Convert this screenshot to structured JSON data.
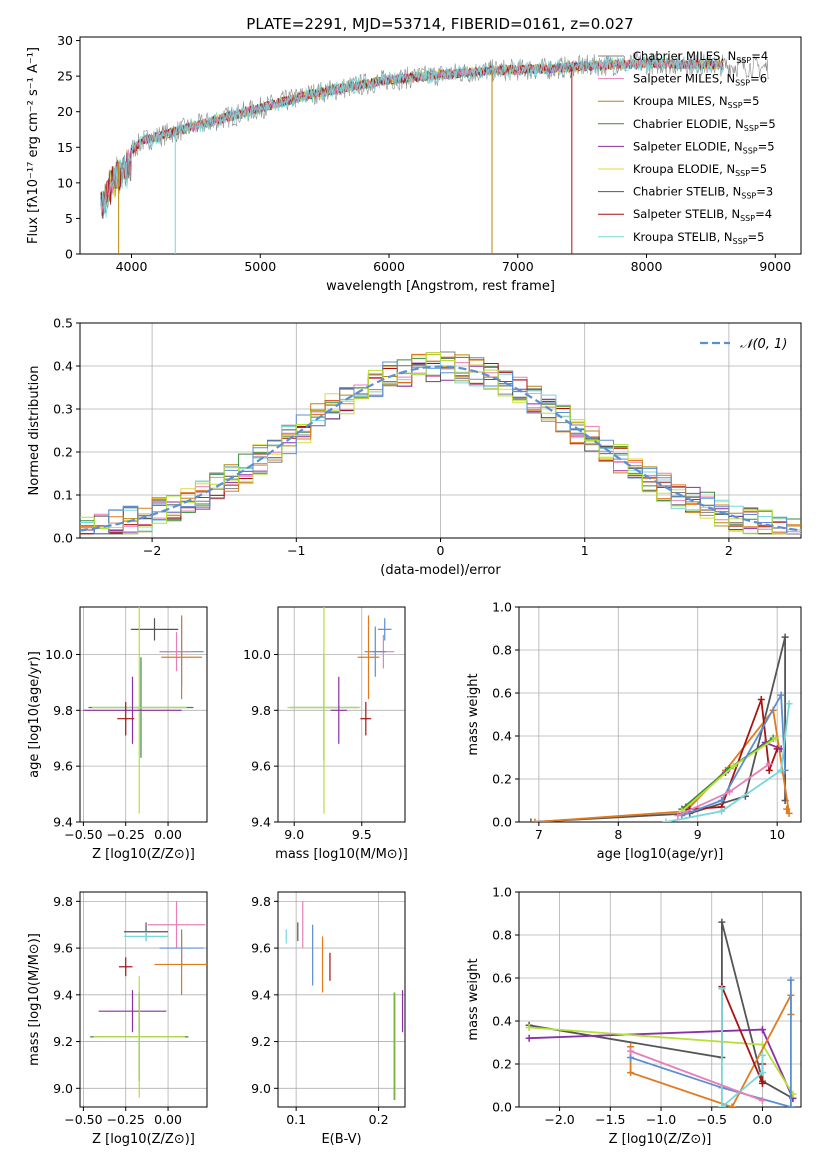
{
  "title": "PLATE=2291, MJD=53714, FIBERID=0161, z=0.027",
  "colors": {
    "axis": "#000000",
    "grid": "#b0b0b0",
    "chabrier_miles": "#808080",
    "salpeter_miles": "#e87fb6",
    "kroupa_miles": "#b8860b",
    "chabrier_elodie": "#3a8a3a",
    "salpeter_elodie": "#8b2fa6",
    "kroupa_elodie": "#d9dd3e",
    "chabrier_stelib": "#555555",
    "salpeter_stelib": "#aa1111",
    "kroupa_stelib": "#77d7db",
    "normal_curve": "#5b8fd4",
    "orange": "#e07a1f",
    "blue": "#5b8fd4",
    "lime": "#b5e03a"
  },
  "chart_data": [
    {
      "type": "line",
      "id": "spectrum",
      "xlabel": "wavelength [Angstrom, rest frame]",
      "ylabel": "Flux [fλ10⁻¹⁷ erg cm⁻² s⁻¹ A⁻¹]",
      "xlim": [
        3600,
        9200
      ],
      "ylim": [
        0,
        30.5
      ],
      "xticks": [
        4000,
        5000,
        6000,
        7000,
        8000,
        9000
      ],
      "yticks": [
        0,
        5,
        10,
        15,
        20,
        25,
        30
      ],
      "grid": false,
      "legend": "top-right",
      "continuum": {
        "x": [
          3750,
          3850,
          3950,
          4100,
          4300,
          4500,
          4800,
          5100,
          5400,
          5700,
          6000,
          6400,
          6800,
          7200,
          7600,
          8000,
          8500,
          8900
        ],
        "y": [
          8,
          12,
          14,
          16,
          17,
          18,
          19.5,
          21,
          22.5,
          23.5,
          24.5,
          25.2,
          25.8,
          26,
          26.5,
          26.8,
          26.6,
          26.2
        ]
      },
      "series": [
        {
          "name": "Chabrier MILES, N_SSP=4",
          "color_key": "chabrier_miles"
        },
        {
          "name": "Salpeter MILES, N_SSP=6",
          "color_key": "salpeter_miles"
        },
        {
          "name": "Kroupa MILES, N_SSP=5",
          "color_key": "kroupa_miles"
        },
        {
          "name": "Chabrier ELODIE, N_SSP=5",
          "color_key": "chabrier_elodie"
        },
        {
          "name": "Salpeter ELODIE, N_SSP=5",
          "color_key": "salpeter_elodie"
        },
        {
          "name": "Kroupa ELODIE, N_SSP=5",
          "color_key": "kroupa_elodie"
        },
        {
          "name": "Chabrier STELIB, N_SSP=3",
          "color_key": "chabrier_stelib"
        },
        {
          "name": "Salpeter STELIB, N_SSP=4",
          "color_key": "salpeter_stelib"
        },
        {
          "name": "Kroupa STELIB, N_SSP=5",
          "color_key": "kroupa_stelib"
        }
      ]
    },
    {
      "type": "bar",
      "id": "residuals",
      "xlabel": "(data-model)/error",
      "ylabel": "Normed distribution",
      "xlim": [
        -2.5,
        2.5
      ],
      "ylim": [
        0,
        0.5
      ],
      "xticks": [
        -2,
        -1,
        0,
        1,
        2
      ],
      "yticks": [
        0.0,
        0.1,
        0.2,
        0.3,
        0.4,
        0.5
      ],
      "grid": true,
      "legend": "top-right",
      "legend_label": "N(0,1)",
      "bin_width": 0.1
    },
    {
      "type": "scatter",
      "id": "age_vs_Z",
      "xlabel": "Z [log10(Z/Z⊙)]",
      "ylabel": "age [log10(age/yr)]",
      "xlim": [
        -0.52,
        0.23
      ],
      "ylim": [
        9.4,
        10.17
      ],
      "xticks": [
        -0.5,
        -0.25,
        0.0
      ],
      "yticks": [
        9.4,
        9.6,
        9.8,
        10.0
      ],
      "grid": true,
      "points": [
        {
          "color_key": "chabrier_stelib",
          "x": -0.08,
          "y": 10.09,
          "xerr": 0.14,
          "yerr": 0.04
        },
        {
          "color_key": "blue",
          "x": 0.08,
          "y": 10.01,
          "xerr": 0.13,
          "yerr": 0.12
        },
        {
          "color_key": "salpeter_miles",
          "x": 0.05,
          "y": 10.01,
          "xerr": 0.1,
          "yerr": 0.07
        },
        {
          "color_key": "orange",
          "x": 0.08,
          "y": 9.99,
          "xerr": 0.12,
          "yerr": 0.15
        },
        {
          "color_key": "chabrier_elodie",
          "x": -0.16,
          "y": 9.81,
          "xerr": 0.31,
          "yerr": 0.18
        },
        {
          "color_key": "lime",
          "x": -0.17,
          "y": 9.81,
          "xerr": 0.28,
          "yerr": 0.38
        },
        {
          "color_key": "salpeter_elodie",
          "x": -0.21,
          "y": 9.8,
          "xerr": 0.29,
          "yerr": 0.12
        },
        {
          "color_key": "salpeter_stelib",
          "x": -0.25,
          "y": 9.77,
          "xerr": 0.05,
          "yerr": 0.06
        }
      ]
    },
    {
      "type": "scatter",
      "id": "age_vs_mass",
      "xlabel": "mass [log10(M/M⊙)]",
      "ylabel": "",
      "xlim": [
        8.88,
        9.82
      ],
      "ylim": [
        9.4,
        10.17
      ],
      "xticks": [
        9.0,
        9.5
      ],
      "yticks": [
        9.4,
        9.6,
        9.8,
        10.0
      ],
      "grid": true,
      "points": [
        {
          "color_key": "blue",
          "x": 9.67,
          "y": 10.09,
          "xerr": 0.05,
          "yerr": 0.04
        },
        {
          "color_key": "salpeter_miles",
          "x": 9.66,
          "y": 10.01,
          "xerr": 0.08,
          "yerr": 0.06
        },
        {
          "color_key": "blue",
          "x": 9.6,
          "y": 10.01,
          "xerr": 0.08,
          "yerr": 0.09
        },
        {
          "color_key": "orange",
          "x": 9.55,
          "y": 9.99,
          "xerr": 0.08,
          "yerr": 0.15
        },
        {
          "color_key": "chabrier_elodie",
          "x": 9.22,
          "y": 9.81,
          "xerr": 0.25,
          "yerr": 0.19
        },
        {
          "color_key": "lime",
          "x": 9.22,
          "y": 9.81,
          "xerr": 0.27,
          "yerr": 0.38
        },
        {
          "color_key": "salpeter_elodie",
          "x": 9.33,
          "y": 9.8,
          "xerr": 0.06,
          "yerr": 0.12
        },
        {
          "color_key": "salpeter_stelib",
          "x": 9.53,
          "y": 9.77,
          "xerr": 0.04,
          "yerr": 0.06
        }
      ]
    },
    {
      "type": "line",
      "id": "massweight_vs_age",
      "xlabel": "age [log10(age/yr)]",
      "ylabel": "mass weight",
      "xlim": [
        6.75,
        10.3
      ],
      "ylim": [
        0,
        1.0
      ],
      "xticks": [
        7,
        8,
        9,
        10
      ],
      "yticks": [
        0.0,
        0.2,
        0.4,
        0.6,
        0.8,
        1.0
      ],
      "grid": true,
      "series": [
        {
          "color_key": "chabrier_stelib",
          "x": [
            6.9,
            8.9,
            9.6,
            10.1,
            10.1
          ],
          "y": [
            0.0,
            0.04,
            0.12,
            0.86,
            0.1
          ]
        },
        {
          "color_key": "orange",
          "x": [
            6.95,
            8.85,
            9.35,
            9.95,
            10.15,
            10.12
          ],
          "y": [
            0.0,
            0.05,
            0.24,
            0.52,
            0.04,
            0.06
          ]
        },
        {
          "color_key": "salpeter_stelib",
          "x": [
            8.9,
            9.3,
            9.8,
            9.9,
            10.0
          ],
          "y": [
            0.06,
            0.07,
            0.57,
            0.24,
            0.34
          ]
        },
        {
          "color_key": "salpeter_elodie",
          "x": [
            8.85,
            9.35,
            9.85,
            10.05
          ],
          "y": [
            0.07,
            0.23,
            0.37,
            0.34
          ]
        },
        {
          "color_key": "chabrier_elodie",
          "x": [
            8.8,
            9.4,
            9.95
          ],
          "y": [
            0.06,
            0.25,
            0.39
          ]
        },
        {
          "color_key": "lime",
          "x": [
            8.8,
            9.45,
            9.98
          ],
          "y": [
            0.05,
            0.26,
            0.39
          ]
        },
        {
          "color_key": "blue",
          "x": [
            8.8,
            9.3,
            10.05,
            10.1
          ],
          "y": [
            0.03,
            0.1,
            0.59,
            0.24
          ]
        },
        {
          "color_key": "kroupa_stelib",
          "x": [
            8.6,
            9.3,
            10.05,
            10.15
          ],
          "y": [
            0.0,
            0.05,
            0.24,
            0.55
          ]
        },
        {
          "color_key": "salpeter_miles",
          "x": [
            8.75,
            9.4,
            9.9
          ],
          "y": [
            0.03,
            0.14,
            0.27
          ]
        }
      ]
    },
    {
      "type": "scatter",
      "id": "mass_vs_Z",
      "xlabel": "Z [log10(Z/Z⊙)]",
      "ylabel": "mass [log10(M/M⊙)]",
      "xlim": [
        -0.52,
        0.23
      ],
      "ylim": [
        8.92,
        9.84
      ],
      "xticks": [
        -0.5,
        -0.25,
        0.0
      ],
      "yticks": [
        9.0,
        9.2,
        9.4,
        9.6,
        9.8
      ],
      "grid": true,
      "points": [
        {
          "color_key": "chabrier_stelib",
          "x": -0.13,
          "y": 9.67,
          "xerr": 0.13,
          "yerr": 0.04
        },
        {
          "color_key": "kroupa_stelib",
          "x": -0.13,
          "y": 9.65,
          "xerr": 0.13,
          "yerr": 0.02
        },
        {
          "color_key": "salpeter_miles",
          "x": 0.05,
          "y": 9.7,
          "xerr": 0.17,
          "yerr": 0.1
        },
        {
          "color_key": "blue",
          "x": 0.08,
          "y": 9.6,
          "xerr": 0.13,
          "yerr": 0.08
        },
        {
          "color_key": "orange",
          "x": 0.08,
          "y": 9.53,
          "xerr": 0.16,
          "yerr": 0.13
        },
        {
          "color_key": "salpeter_stelib",
          "x": -0.25,
          "y": 9.52,
          "xerr": 0.04,
          "yerr": 0.04
        },
        {
          "color_key": "salpeter_elodie",
          "x": -0.21,
          "y": 9.33,
          "xerr": 0.2,
          "yerr": 0.09
        },
        {
          "color_key": "chabrier_elodie",
          "x": -0.17,
          "y": 9.22,
          "xerr": 0.29,
          "yerr": 0.19
        },
        {
          "color_key": "lime",
          "x": -0.17,
          "y": 9.22,
          "xerr": 0.27,
          "yerr": 0.26
        }
      ]
    },
    {
      "type": "scatter",
      "id": "mass_vs_ebv",
      "xlabel": "E(B-V)",
      "ylabel": "",
      "xlim": [
        0.078,
        0.232
      ],
      "ylim": [
        8.92,
        9.84
      ],
      "xticks": [
        0.1,
        0.2
      ],
      "yticks": [
        9.0,
        9.2,
        9.4,
        9.6,
        9.8
      ],
      "grid": true,
      "points": [
        {
          "color_key": "kroupa_stelib",
          "x": 0.088,
          "y": 9.65,
          "xerr": 0,
          "yerr": 0.03
        },
        {
          "color_key": "chabrier_stelib",
          "x": 0.102,
          "y": 9.67,
          "xerr": 0,
          "yerr": 0.04
        },
        {
          "color_key": "salpeter_miles",
          "x": 0.108,
          "y": 9.7,
          "xerr": 0,
          "yerr": 0.1
        },
        {
          "color_key": "blue",
          "x": 0.12,
          "y": 9.57,
          "xerr": 0,
          "yerr": 0.13
        },
        {
          "color_key": "orange",
          "x": 0.132,
          "y": 9.53,
          "xerr": 0,
          "yerr": 0.12
        },
        {
          "color_key": "salpeter_stelib",
          "x": 0.141,
          "y": 9.52,
          "xerr": 0,
          "yerr": 0.06
        },
        {
          "color_key": "chabrier_elodie",
          "x": 0.219,
          "y": 9.18,
          "xerr": 0,
          "yerr": 0.23
        },
        {
          "color_key": "lime",
          "x": 0.22,
          "y": 9.18,
          "xerr": 0,
          "yerr": 0.23
        },
        {
          "color_key": "salpeter_elodie",
          "x": 0.229,
          "y": 9.33,
          "xerr": 0,
          "yerr": 0.09
        }
      ]
    },
    {
      "type": "line",
      "id": "massweight_vs_Z",
      "xlabel": "Z [log10(Z/Z⊙)]",
      "ylabel": "mass weight",
      "xlim": [
        -2.4,
        0.38
      ],
      "ylim": [
        0,
        1.0
      ],
      "xticks": [
        -2.0,
        -1.5,
        -1.0,
        -0.5,
        0.0
      ],
      "yticks": [
        0.0,
        0.2,
        0.4,
        0.6,
        0.8,
        1.0
      ],
      "grid": true,
      "series": [
        {
          "color_key": "chabrier_stelib",
          "x": [
            -2.3,
            -0.4,
            -0.4,
            0.0,
            0.3
          ],
          "y": [
            0.38,
            0.23,
            0.86,
            0.12,
            0.04
          ]
        },
        {
          "color_key": "salpeter_elodie",
          "x": [
            -2.3,
            0.0,
            0.3
          ],
          "y": [
            0.32,
            0.36,
            0.04
          ]
        },
        {
          "color_key": "lime",
          "x": [
            -2.3,
            0.0,
            0.3
          ],
          "y": [
            0.37,
            0.29,
            0.06
          ]
        },
        {
          "color_key": "orange",
          "x": [
            -1.3,
            -1.3,
            -0.3,
            0.28,
            0.28
          ],
          "y": [
            0.28,
            0.16,
            0.0,
            0.52,
            0.43
          ]
        },
        {
          "color_key": "blue",
          "x": [
            -1.3,
            -0.4,
            0.28,
            0.28
          ],
          "y": [
            0.23,
            0.09,
            0.0,
            0.59
          ]
        },
        {
          "color_key": "salpeter_stelib",
          "x": [
            -0.4,
            0.0,
            0.0
          ],
          "y": [
            0.56,
            0.11,
            0.2
          ]
        },
        {
          "color_key": "kroupa_stelib",
          "x": [
            -0.4,
            -0.4,
            0.0,
            0.0
          ],
          "y": [
            0.55,
            0.0,
            0.16,
            0.24
          ]
        },
        {
          "color_key": "salpeter_miles",
          "x": [
            -1.3,
            0.0
          ],
          "y": [
            0.26,
            0.03
          ]
        }
      ]
    }
  ]
}
